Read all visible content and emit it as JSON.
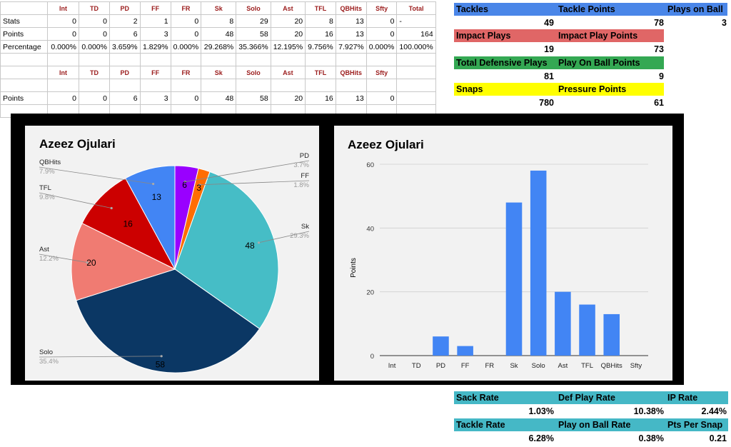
{
  "table": {
    "header1": [
      "Int",
      "TD",
      "PD",
      "FF",
      "FR",
      "Sk",
      "Solo",
      "Ast",
      "TFL",
      "QBHits",
      "Sfty",
      "Total"
    ],
    "rows1": [
      {
        "label": "Stats",
        "values": [
          "0",
          "0",
          "2",
          "1",
          "0",
          "8",
          "29",
          "20",
          "8",
          "13",
          "0",
          "-"
        ]
      },
      {
        "label": "Points",
        "values": [
          "0",
          "0",
          "6",
          "3",
          "0",
          "48",
          "58",
          "20",
          "16",
          "13",
          "0",
          "164"
        ]
      },
      {
        "label": "Percentage",
        "values": [
          "0.000%",
          "0.000%",
          "3.659%",
          "1.829%",
          "0.000%",
          "29.268%",
          "35.366%",
          "12.195%",
          "9.756%",
          "7.927%",
          "0.000%",
          "100.000%"
        ]
      }
    ],
    "header2": [
      "Int",
      "TD",
      "PD",
      "FF",
      "FR",
      "Sk",
      "Solo",
      "Ast",
      "TFL",
      "QBHits",
      "Sfty"
    ],
    "rows2": [
      {
        "label": "Points",
        "values": [
          "0",
          "0",
          "6",
          "3",
          "0",
          "48",
          "58",
          "20",
          "16",
          "13",
          "0"
        ]
      }
    ]
  },
  "summary_top": {
    "tackles_label": "Tackles",
    "tackle_points_label": "Tackle Points",
    "plays_on_ball_label": "Plays on Ball",
    "tackles": "49",
    "tackle_points": "78",
    "plays_on_ball": "3",
    "impact_plays_label": "Impact Plays",
    "impact_play_points_label": "Impact Play Points",
    "impact_plays": "19",
    "impact_play_points": "73",
    "total_def_plays_label": "Total Defensive Plays",
    "play_on_ball_points_label": "Play On Ball Points",
    "total_def_plays": "81",
    "play_on_ball_points": "9",
    "snaps_label": "Snaps",
    "pressure_points_label": "Pressure Points",
    "snaps": "780",
    "pressure_points": "61"
  },
  "summary_bottom": {
    "sack_rate_label": "Sack Rate",
    "def_play_rate_label": "Def Play Rate",
    "ip_rate_label": "IP Rate",
    "sack_rate": "1.03%",
    "def_play_rate": "10.38%",
    "ip_rate": "2.44%",
    "tackle_rate_label": "Tackle Rate",
    "play_on_ball_rate_label": "Play on Ball Rate",
    "pts_per_snap_label": "Pts Per Snap",
    "tackle_rate": "6.28%",
    "play_on_ball_rate": "0.38%",
    "pts_per_snap": "0.21"
  },
  "colors": {
    "blue_band": "#4a86e8",
    "red_band": "#e06666",
    "green_band": "#34a853",
    "yellow_band": "#ffff00",
    "teal_band": "#45b8c6",
    "bar": "#4285f4"
  },
  "chart_data": [
    {
      "type": "pie",
      "title": "Azeez Ojulari",
      "slices": [
        {
          "label": "PD",
          "value": 6,
          "percent": "3.7%",
          "color": "#9900ff"
        },
        {
          "label": "FF",
          "value": 3,
          "percent": "1.8%",
          "color": "#ff6d01"
        },
        {
          "label": "Sk",
          "value": 48,
          "percent": "29.3%",
          "color": "#46bdc6"
        },
        {
          "label": "Solo",
          "value": 58,
          "percent": "35.4%",
          "color": "#0b3764"
        },
        {
          "label": "Ast",
          "value": 20,
          "percent": "12.2%",
          "color": "#f07b72"
        },
        {
          "label": "TFL",
          "value": 16,
          "percent": "9.8%",
          "color": "#cc0000"
        },
        {
          "label": "QBHits",
          "value": 13,
          "percent": "7.9%",
          "color": "#4285f4"
        }
      ]
    },
    {
      "type": "bar",
      "title": "Azeez Ojulari",
      "ylabel": "Points",
      "categories": [
        "Int",
        "TD",
        "PD",
        "FF",
        "FR",
        "Sk",
        "Solo",
        "Ast",
        "TFL",
        "QBHits",
        "Sfty"
      ],
      "values": [
        0,
        0,
        6,
        3,
        0,
        48,
        58,
        20,
        16,
        13,
        0
      ],
      "ylim": [
        0,
        60
      ],
      "yticks": [
        "0",
        "20",
        "40",
        "60"
      ],
      "grid": true
    }
  ]
}
